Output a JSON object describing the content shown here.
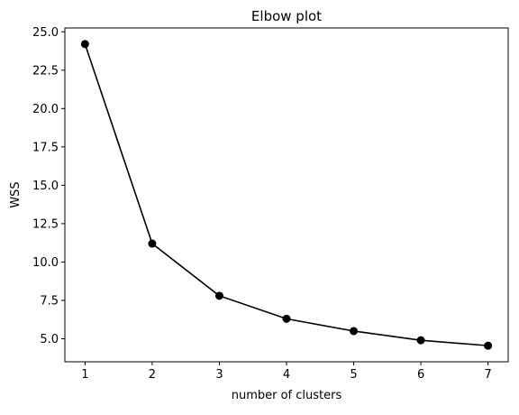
{
  "chart_data": {
    "type": "line",
    "title": "Elbow plot",
    "xlabel": "number of clusters",
    "ylabel": "WSS",
    "x": [
      1,
      2,
      3,
      4,
      5,
      6,
      7
    ],
    "series": [
      {
        "values": [
          24.2,
          11.2,
          7.8,
          6.3,
          5.5,
          4.9,
          4.55
        ],
        "color": "#000000",
        "marker": "circle"
      }
    ],
    "xlim": [
      0.7,
      7.3
    ],
    "ylim": [
      3.5,
      25.25
    ],
    "xticks": [
      1,
      2,
      3,
      4,
      5,
      6,
      7
    ],
    "yticks": [
      5.0,
      7.5,
      10.0,
      12.5,
      15.0,
      17.5,
      20.0,
      22.5,
      25.0
    ],
    "ytick_labels": [
      "5.0",
      "7.5",
      "10.0",
      "12.5",
      "15.0",
      "17.5",
      "20.0",
      "22.5",
      "25.0"
    ],
    "xtick_labels": [
      "1",
      "2",
      "3",
      "4",
      "5",
      "6",
      "7"
    ],
    "grid": false,
    "legend": false
  }
}
